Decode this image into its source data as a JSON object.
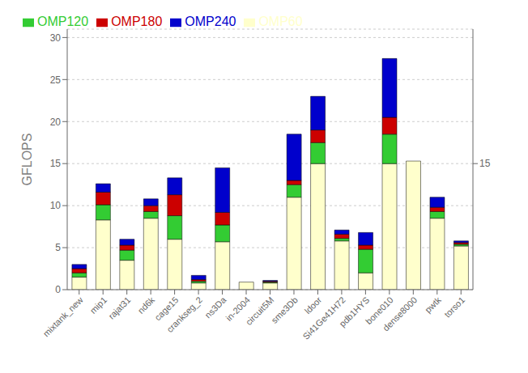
{
  "chart_data": {
    "type": "bar",
    "stacked": true,
    "categories": [
      "mixtank_new",
      "mip1",
      "rajat31",
      "nd6k",
      "cage15",
      "crankseg_2",
      "ns3Da",
      "in-2004",
      "circuit5M",
      "sme3Db",
      "ldoor",
      "Si41Ge41H72",
      "pdb1HYS",
      "bone010",
      "dense8000",
      "pwtk",
      "torso1"
    ],
    "series": [
      {
        "name": "OMP60",
        "color": "#ffffcc",
        "values": [
          1.5,
          8.3,
          3.5,
          8.5,
          6.0,
          0.8,
          5.7,
          0.9,
          0.8,
          11.0,
          15.0,
          5.8,
          2.0,
          15.0,
          15.3,
          8.5,
          5.2
        ]
      },
      {
        "name": "OMP120",
        "color": "#33cc33",
        "values": [
          0.5,
          1.8,
          1.2,
          0.8,
          2.8,
          0.2,
          2.0,
          0.0,
          0.1,
          1.5,
          2.5,
          0.3,
          2.8,
          3.5,
          0.0,
          0.8,
          0.2
        ]
      },
      {
        "name": "OMP180",
        "color": "#cc0000",
        "values": [
          0.5,
          1.5,
          0.6,
          0.7,
          2.5,
          0.2,
          1.5,
          0.0,
          0.1,
          0.5,
          1.5,
          0.5,
          0.5,
          2.0,
          0.0,
          0.5,
          0.2
        ]
      },
      {
        "name": "OMP240",
        "color": "#0000cc",
        "values": [
          0.5,
          1.0,
          0.7,
          0.8,
          2.0,
          0.5,
          5.3,
          0.0,
          0.1,
          5.5,
          4.0,
          0.5,
          1.5,
          7.0,
          0.0,
          1.2,
          0.2
        ]
      }
    ],
    "ylabel": "GFLOPS",
    "ylim": [
      0,
      31
    ],
    "yticks": [
      0,
      5,
      10,
      15,
      20,
      25,
      30
    ],
    "y2lim": [
      0,
      31
    ],
    "y2ticks": [
      15
    ],
    "grid": true,
    "legend": "upper left"
  }
}
